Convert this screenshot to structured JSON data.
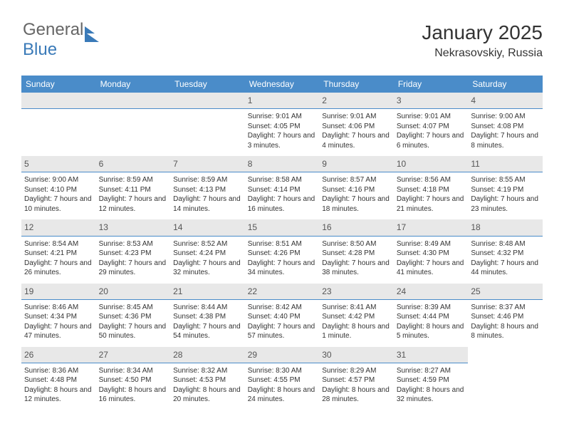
{
  "logo": {
    "part1": "General",
    "part2": "Blue"
  },
  "header": {
    "title": "January 2025",
    "subtitle": "Nekrasovskiy, Russia"
  },
  "colors": {
    "header_bg": "#4a8cc9",
    "dayhdr_bg": "#e8e8e8",
    "accent": "#3a7ab8"
  },
  "days": [
    "Sunday",
    "Monday",
    "Tuesday",
    "Wednesday",
    "Thursday",
    "Friday",
    "Saturday"
  ],
  "weeks": [
    [
      null,
      null,
      null,
      {
        "n": "1",
        "sr": "9:01 AM",
        "ss": "4:05 PM",
        "dl": "7 hours and 3 minutes."
      },
      {
        "n": "2",
        "sr": "9:01 AM",
        "ss": "4:06 PM",
        "dl": "7 hours and 4 minutes."
      },
      {
        "n": "3",
        "sr": "9:01 AM",
        "ss": "4:07 PM",
        "dl": "7 hours and 6 minutes."
      },
      {
        "n": "4",
        "sr": "9:00 AM",
        "ss": "4:08 PM",
        "dl": "7 hours and 8 minutes."
      }
    ],
    [
      {
        "n": "5",
        "sr": "9:00 AM",
        "ss": "4:10 PM",
        "dl": "7 hours and 10 minutes."
      },
      {
        "n": "6",
        "sr": "8:59 AM",
        "ss": "4:11 PM",
        "dl": "7 hours and 12 minutes."
      },
      {
        "n": "7",
        "sr": "8:59 AM",
        "ss": "4:13 PM",
        "dl": "7 hours and 14 minutes."
      },
      {
        "n": "8",
        "sr": "8:58 AM",
        "ss": "4:14 PM",
        "dl": "7 hours and 16 minutes."
      },
      {
        "n": "9",
        "sr": "8:57 AM",
        "ss": "4:16 PM",
        "dl": "7 hours and 18 minutes."
      },
      {
        "n": "10",
        "sr": "8:56 AM",
        "ss": "4:18 PM",
        "dl": "7 hours and 21 minutes."
      },
      {
        "n": "11",
        "sr": "8:55 AM",
        "ss": "4:19 PM",
        "dl": "7 hours and 23 minutes."
      }
    ],
    [
      {
        "n": "12",
        "sr": "8:54 AM",
        "ss": "4:21 PM",
        "dl": "7 hours and 26 minutes."
      },
      {
        "n": "13",
        "sr": "8:53 AM",
        "ss": "4:23 PM",
        "dl": "7 hours and 29 minutes."
      },
      {
        "n": "14",
        "sr": "8:52 AM",
        "ss": "4:24 PM",
        "dl": "7 hours and 32 minutes."
      },
      {
        "n": "15",
        "sr": "8:51 AM",
        "ss": "4:26 PM",
        "dl": "7 hours and 34 minutes."
      },
      {
        "n": "16",
        "sr": "8:50 AM",
        "ss": "4:28 PM",
        "dl": "7 hours and 38 minutes."
      },
      {
        "n": "17",
        "sr": "8:49 AM",
        "ss": "4:30 PM",
        "dl": "7 hours and 41 minutes."
      },
      {
        "n": "18",
        "sr": "8:48 AM",
        "ss": "4:32 PM",
        "dl": "7 hours and 44 minutes."
      }
    ],
    [
      {
        "n": "19",
        "sr": "8:46 AM",
        "ss": "4:34 PM",
        "dl": "7 hours and 47 minutes."
      },
      {
        "n": "20",
        "sr": "8:45 AM",
        "ss": "4:36 PM",
        "dl": "7 hours and 50 minutes."
      },
      {
        "n": "21",
        "sr": "8:44 AM",
        "ss": "4:38 PM",
        "dl": "7 hours and 54 minutes."
      },
      {
        "n": "22",
        "sr": "8:42 AM",
        "ss": "4:40 PM",
        "dl": "7 hours and 57 minutes."
      },
      {
        "n": "23",
        "sr": "8:41 AM",
        "ss": "4:42 PM",
        "dl": "8 hours and 1 minute."
      },
      {
        "n": "24",
        "sr": "8:39 AM",
        "ss": "4:44 PM",
        "dl": "8 hours and 5 minutes."
      },
      {
        "n": "25",
        "sr": "8:37 AM",
        "ss": "4:46 PM",
        "dl": "8 hours and 8 minutes."
      }
    ],
    [
      {
        "n": "26",
        "sr": "8:36 AM",
        "ss": "4:48 PM",
        "dl": "8 hours and 12 minutes."
      },
      {
        "n": "27",
        "sr": "8:34 AM",
        "ss": "4:50 PM",
        "dl": "8 hours and 16 minutes."
      },
      {
        "n": "28",
        "sr": "8:32 AM",
        "ss": "4:53 PM",
        "dl": "8 hours and 20 minutes."
      },
      {
        "n": "29",
        "sr": "8:30 AM",
        "ss": "4:55 PM",
        "dl": "8 hours and 24 minutes."
      },
      {
        "n": "30",
        "sr": "8:29 AM",
        "ss": "4:57 PM",
        "dl": "8 hours and 28 minutes."
      },
      {
        "n": "31",
        "sr": "8:27 AM",
        "ss": "4:59 PM",
        "dl": "8 hours and 32 minutes."
      },
      null
    ]
  ],
  "labels": {
    "sunrise": "Sunrise: ",
    "sunset": "Sunset: ",
    "daylight": "Daylight: "
  }
}
